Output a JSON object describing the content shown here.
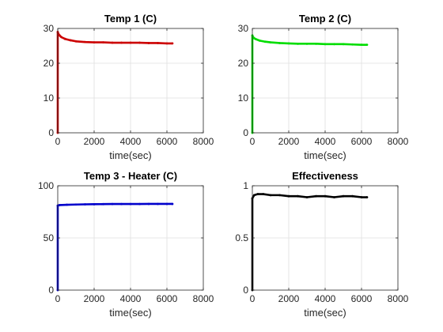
{
  "colors": {
    "background": "#ffffff",
    "axis": "#262626",
    "grid": "#dfdfdf"
  },
  "chart_data": [
    {
      "type": "line",
      "title": "Temp 1 (C)",
      "xlabel": "time(sec)",
      "ylabel": "",
      "xlim": [
        0,
        8000
      ],
      "ylim": [
        0,
        30
      ],
      "xticks": [
        0,
        2000,
        4000,
        6000,
        8000
      ],
      "yticks": [
        0,
        10,
        20,
        30
      ],
      "grid": true,
      "series": [
        {
          "color": "#cc0000",
          "x": [
            0,
            0,
            30,
            100,
            200,
            400,
            700,
            1000,
            1500,
            2000,
            2500,
            3000,
            3500,
            4000,
            4500,
            5000,
            5500,
            6000,
            6300
          ],
          "y": [
            0,
            29,
            28.5,
            28,
            27.5,
            27,
            26.6,
            26.3,
            26.1,
            26.0,
            26.0,
            25.9,
            25.9,
            25.9,
            25.9,
            25.8,
            25.8,
            25.7,
            25.7
          ]
        }
      ]
    },
    {
      "type": "line",
      "title": "Temp 2 (C)",
      "xlabel": "time(sec)",
      "ylabel": "",
      "xlim": [
        0,
        8000
      ],
      "ylim": [
        0,
        30
      ],
      "xticks": [
        0,
        2000,
        4000,
        6000,
        8000
      ],
      "yticks": [
        0,
        10,
        20,
        30
      ],
      "grid": true,
      "series": [
        {
          "color": "#00dd00",
          "x": [
            0,
            0,
            30,
            100,
            200,
            400,
            700,
            1000,
            1500,
            2000,
            2500,
            3000,
            3500,
            4000,
            4500,
            5000,
            5500,
            6000,
            6300
          ],
          "y": [
            0,
            28,
            27.6,
            27.2,
            26.9,
            26.5,
            26.2,
            26.0,
            25.8,
            25.7,
            25.6,
            25.6,
            25.6,
            25.5,
            25.5,
            25.5,
            25.4,
            25.3,
            25.3
          ]
        }
      ]
    },
    {
      "type": "line",
      "title": "Temp 3 - Heater (C)",
      "xlabel": "time(sec)",
      "ylabel": "",
      "xlim": [
        0,
        8000
      ],
      "ylim": [
        0,
        100
      ],
      "xticks": [
        0,
        2000,
        4000,
        6000,
        8000
      ],
      "yticks": [
        0,
        50,
        100
      ],
      "grid": true,
      "series": [
        {
          "color": "#0000cc",
          "x": [
            0,
            0,
            100,
            500,
            1000,
            1500,
            2000,
            2500,
            3000,
            3500,
            4000,
            4500,
            5000,
            5500,
            6000,
            6300
          ],
          "y": [
            0,
            81,
            81.5,
            81.8,
            82,
            82.2,
            82.3,
            82.4,
            82.5,
            82.5,
            82.5,
            82.5,
            82.6,
            82.6,
            82.6,
            82.6
          ]
        }
      ]
    },
    {
      "type": "line",
      "title": "Effectiveness",
      "xlabel": "time(sec)",
      "ylabel": "",
      "xlim": [
        0,
        8000
      ],
      "ylim": [
        0,
        1
      ],
      "xticks": [
        0,
        2000,
        4000,
        6000,
        8000
      ],
      "yticks": [
        0,
        0.5,
        1
      ],
      "grid": true,
      "series": [
        {
          "color": "#000000",
          "x": [
            0,
            0,
            100,
            300,
            600,
            1000,
            1500,
            2000,
            2500,
            3000,
            3500,
            4000,
            4500,
            5000,
            5500,
            6000,
            6300
          ],
          "y": [
            0,
            0.88,
            0.91,
            0.92,
            0.92,
            0.91,
            0.91,
            0.9,
            0.9,
            0.89,
            0.9,
            0.9,
            0.89,
            0.9,
            0.9,
            0.89,
            0.89
          ]
        }
      ]
    }
  ]
}
